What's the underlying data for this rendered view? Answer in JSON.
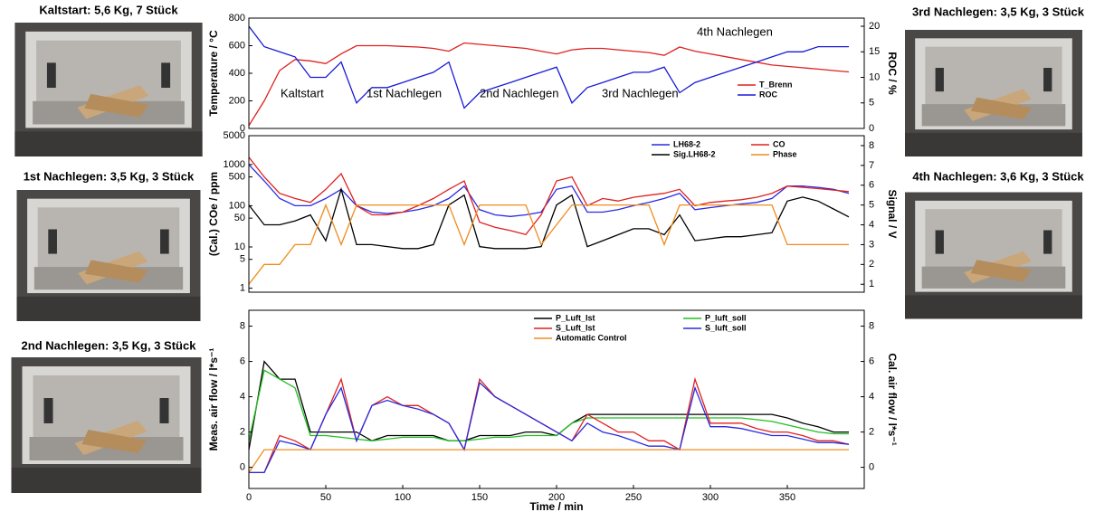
{
  "photos": [
    {
      "caption": "Kaltstart: 5,6 Kg, 7 Stück"
    },
    {
      "caption": "1st Nachlegen: 3,5 Kg, 3 Stück"
    },
    {
      "caption": "2nd Nachlegen: 3,5 Kg, 3 Stück"
    },
    {
      "caption": "3rd Nachlegen: 3,5 Kg, 3 Stück"
    },
    {
      "caption": "4th Nachlegen: 3,6 Kg, 3 Stück"
    }
  ],
  "chart_data": [
    {
      "type": "line",
      "ylabel": "Temperature / °C",
      "ylabel_color": "#d42020",
      "y2label": "ROC / %",
      "y2label_color": "#2020d0",
      "xlim": [
        0,
        400
      ],
      "ylim": [
        0,
        800
      ],
      "yticks": [
        0,
        200,
        400,
        600,
        800
      ],
      "y2lim": [
        0,
        21.6
      ],
      "y2ticks": [
        0,
        5,
        10,
        15,
        20
      ],
      "legend": "lower right",
      "annotations": [
        "Kaltstart",
        "1st Nachlegen",
        "2nd Nachlegen",
        "3rd Nachlegen",
        "4th Nachlegen"
      ],
      "x": [
        0,
        10,
        20,
        30,
        40,
        50,
        60,
        70,
        80,
        90,
        100,
        110,
        120,
        130,
        140,
        150,
        160,
        170,
        180,
        190,
        200,
        210,
        220,
        230,
        240,
        250,
        260,
        270,
        280,
        290,
        300,
        310,
        320,
        330,
        340,
        350,
        360,
        370,
        380,
        390
      ],
      "series": [
        {
          "name": "T_Brenn",
          "color": "#e02020",
          "values": [
            20,
            200,
            420,
            500,
            490,
            470,
            540,
            600,
            600,
            600,
            595,
            590,
            580,
            560,
            620,
            610,
            600,
            590,
            580,
            560,
            540,
            570,
            580,
            580,
            570,
            560,
            550,
            530,
            590,
            560,
            540,
            520,
            500,
            480,
            460,
            450,
            440,
            430,
            420,
            410
          ]
        },
        {
          "name": "ROC",
          "color": "#1a1ad8",
          "axis": "y2",
          "values": [
            20,
            16,
            15,
            14,
            10,
            10,
            13,
            5,
            8,
            8,
            9,
            10,
            11,
            13,
            4,
            7,
            8,
            9,
            10,
            11,
            12,
            5,
            8,
            9,
            10,
            11,
            11,
            12,
            7,
            9,
            10,
            11,
            12,
            13,
            14,
            15,
            15,
            16,
            16,
            16
          ]
        }
      ]
    },
    {
      "type": "line",
      "ylabel": "(Cal.) COe / ppm",
      "y2label": "Signal / V",
      "ylog": true,
      "xlim": [
        0,
        400
      ],
      "ylim": [
        0.8,
        5000
      ],
      "yticks": [
        1,
        5,
        10,
        50,
        100,
        500,
        1000,
        5000
      ],
      "y2lim": [
        0.6,
        8.5
      ],
      "y2ticks": [
        1,
        2,
        3,
        4,
        5,
        6,
        7,
        8
      ],
      "legend": "upper right",
      "x": [
        0,
        10,
        20,
        30,
        40,
        50,
        60,
        70,
        80,
        90,
        100,
        110,
        120,
        130,
        140,
        150,
        160,
        170,
        180,
        190,
        200,
        210,
        220,
        230,
        240,
        250,
        260,
        270,
        280,
        290,
        300,
        310,
        320,
        330,
        340,
        350,
        360,
        370,
        380,
        390
      ],
      "series": [
        {
          "name": "LH68-2",
          "color": "#2a2ae0",
          "values": [
            1000,
            400,
            150,
            100,
            100,
            150,
            250,
            100,
            70,
            65,
            70,
            80,
            100,
            150,
            300,
            80,
            60,
            55,
            60,
            70,
            250,
            300,
            70,
            70,
            80,
            100,
            120,
            150,
            200,
            80,
            90,
            100,
            110,
            120,
            150,
            300,
            300,
            280,
            250,
            200
          ]
        },
        {
          "name": "CO",
          "color": "#e02020",
          "values": [
            1500,
            500,
            200,
            150,
            120,
            250,
            600,
            100,
            60,
            60,
            70,
            100,
            150,
            250,
            400,
            40,
            30,
            25,
            20,
            60,
            400,
            500,
            100,
            150,
            130,
            160,
            180,
            200,
            250,
            100,
            120,
            130,
            140,
            160,
            200,
            300,
            280,
            260,
            240,
            220
          ]
        },
        {
          "name": "Sig.LH68-2",
          "color": "#000000",
          "axis": "y2",
          "values": [
            5,
            4,
            4,
            4.2,
            4.5,
            3.2,
            5.8,
            3,
            3,
            2.9,
            2.8,
            2.8,
            3,
            5,
            5.5,
            2.9,
            2.8,
            2.8,
            2.8,
            2.9,
            5,
            5.5,
            2.9,
            3.2,
            3.5,
            3.8,
            3.8,
            3.5,
            4.5,
            3.2,
            3.3,
            3.4,
            3.4,
            3.5,
            3.6,
            5.2,
            5.4,
            5.2,
            4.8,
            4.4
          ]
        },
        {
          "name": "Phase",
          "color": "#f08c1e",
          "axis": "y2",
          "values": [
            1,
            2,
            2,
            3,
            3,
            5,
            3,
            5,
            5,
            5,
            5,
            5,
            5,
            5,
            3,
            5,
            5,
            5,
            5,
            3,
            4,
            5,
            5,
            5,
            5,
            5,
            5,
            3,
            5,
            5,
            5,
            5,
            5,
            5,
            5,
            3,
            3,
            3,
            3,
            3
          ]
        }
      ]
    },
    {
      "type": "line",
      "ylabel": "Meas. air flow / l*s⁻¹",
      "y2label": "Cal. air flow / l*s⁻¹",
      "xlabel": "Time / min",
      "xlim": [
        0,
        400
      ],
      "xticks": [
        0,
        50,
        100,
        150,
        200,
        250,
        300,
        350
      ],
      "ylim": [
        -1.2,
        8.9
      ],
      "yticks": [
        0,
        2,
        4,
        6,
        8
      ],
      "y2lim": [
        -1.2,
        8.9
      ],
      "y2ticks": [
        0,
        2,
        4,
        6,
        8
      ],
      "legend": "upper right",
      "x": [
        0,
        10,
        20,
        30,
        40,
        50,
        60,
        70,
        80,
        90,
        100,
        110,
        120,
        130,
        140,
        150,
        160,
        170,
        180,
        190,
        200,
        210,
        220,
        230,
        240,
        250,
        260,
        270,
        280,
        290,
        300,
        310,
        320,
        330,
        340,
        350,
        360,
        370,
        380,
        390
      ],
      "series": [
        {
          "name": "P_Luft_Ist",
          "color": "#000000",
          "values": [
            1,
            6,
            5,
            5,
            2,
            2,
            2,
            2,
            1.5,
            1.8,
            1.8,
            1.8,
            1.8,
            1.5,
            1.5,
            1.8,
            1.8,
            1.8,
            2,
            2,
            1.8,
            2.5,
            3,
            3,
            3,
            3,
            3,
            3,
            3,
            3,
            3,
            3,
            3,
            3,
            3,
            2.8,
            2.5,
            2.3,
            2,
            2
          ]
        },
        {
          "name": "P_luft_soll",
          "color": "#20c020",
          "axis": "y2",
          "values": [
            1.5,
            5.5,
            5,
            4.5,
            1.8,
            1.8,
            1.7,
            1.6,
            1.5,
            1.6,
            1.7,
            1.7,
            1.7,
            1.5,
            1.5,
            1.6,
            1.7,
            1.7,
            1.8,
            1.8,
            1.8,
            2.5,
            2.8,
            2.8,
            2.8,
            2.8,
            2.8,
            2.8,
            2.8,
            2.8,
            2.8,
            2.8,
            2.8,
            2.7,
            2.6,
            2.4,
            2.2,
            2,
            1.9,
            1.9
          ]
        },
        {
          "name": "S_Luft_Ist",
          "color": "#e02020",
          "values": [
            -0.3,
            -0.3,
            1.8,
            1.5,
            1,
            3,
            5,
            1.5,
            3.5,
            4,
            3.5,
            3.5,
            3,
            2.5,
            1,
            5,
            4,
            3.5,
            3,
            2.5,
            2,
            1.5,
            3,
            2.5,
            2,
            2,
            1.5,
            1.5,
            1,
            5,
            2.5,
            2.5,
            2.5,
            2.2,
            2,
            2,
            1.8,
            1.5,
            1.5,
            1.3
          ]
        },
        {
          "name": "S_luft_soll",
          "color": "#2a2ae0",
          "axis": "y2",
          "values": [
            -0.3,
            -0.3,
            1.5,
            1.3,
            1,
            3,
            4.5,
            1.5,
            3.5,
            3.8,
            3.5,
            3.3,
            3,
            2.5,
            1,
            4.8,
            4,
            3.5,
            3,
            2.5,
            2,
            1.5,
            2.5,
            2,
            1.8,
            1.5,
            1.2,
            1.2,
            1,
            4.5,
            2.3,
            2.3,
            2.2,
            2,
            1.8,
            1.8,
            1.6,
            1.4,
            1.4,
            1.3
          ]
        },
        {
          "name": "Automatic Control",
          "color": "#f08c1e",
          "axis": "y2",
          "values": [
            -0.3,
            1,
            1,
            1,
            1,
            1,
            1,
            1,
            1,
            1,
            1,
            1,
            1,
            1,
            1,
            1,
            1,
            1,
            1,
            1,
            1,
            1,
            1,
            1,
            1,
            1,
            1,
            1,
            1,
            1,
            1,
            1,
            1,
            1,
            1,
            1,
            1,
            1,
            1,
            1
          ]
        }
      ]
    }
  ]
}
